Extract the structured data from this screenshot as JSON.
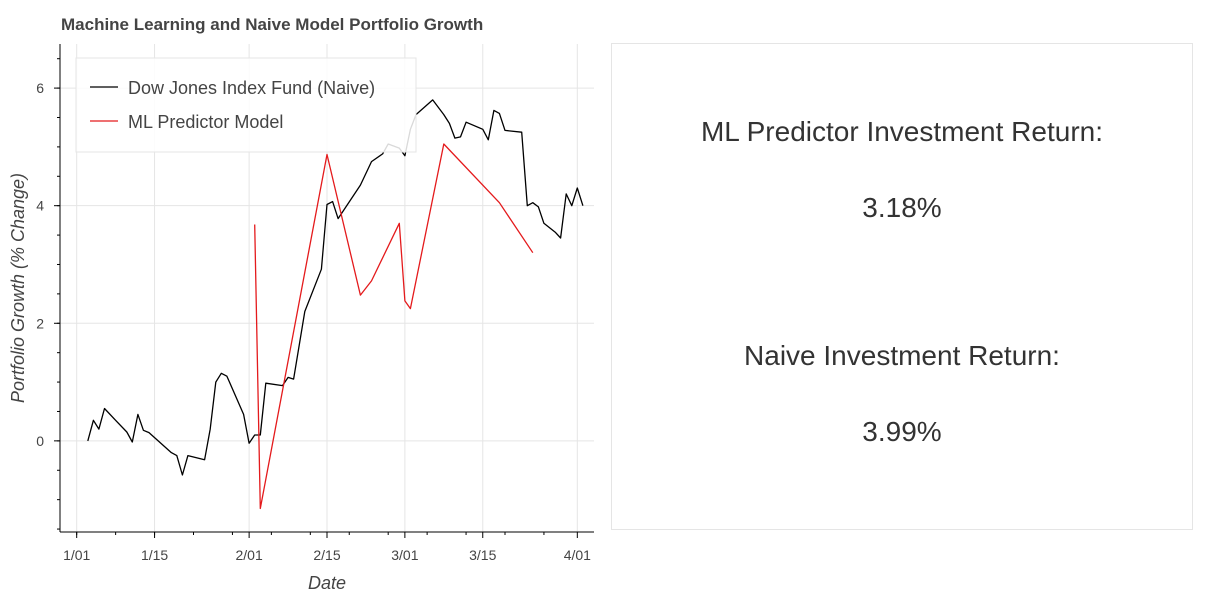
{
  "chart_data": {
    "type": "line",
    "title": "Machine Learning and Naive Model Portfolio Growth",
    "xlabel": "Date",
    "ylabel": "Portfolio Growth (% Change)",
    "xlim": [
      "2019-12-29",
      "2019-04-02"
    ],
    "x_domain": [
      "2019-01-01",
      "2019-04-05"
    ],
    "ylim": [
      -1.55,
      6.75
    ],
    "x_ticks": [
      {
        "date": "2019-01-01",
        "label": "1/01"
      },
      {
        "date": "2019-01-15",
        "label": "1/15"
      },
      {
        "date": "2019-02-01",
        "label": "2/01"
      },
      {
        "date": "2019-02-15",
        "label": "2/15"
      },
      {
        "date": "2019-03-01",
        "label": "3/01"
      },
      {
        "date": "2019-03-15",
        "label": "3/15"
      },
      {
        "date": "2019-04-01",
        "label": "4/01"
      }
    ],
    "y_ticks": [
      0,
      2,
      4,
      6
    ],
    "y_tick_labels": [
      "0",
      "2",
      "4",
      "6"
    ],
    "grid": true,
    "legend_position": "top-left",
    "series": [
      {
        "name": "Dow Jones Index Fund (Naive)",
        "color": "#000000",
        "points": [
          [
            "2019-01-03",
            0.0
          ],
          [
            "2019-01-04",
            0.35
          ],
          [
            "2019-01-05",
            0.2
          ],
          [
            "2019-01-06",
            0.55
          ],
          [
            "2019-01-08",
            0.35
          ],
          [
            "2019-01-10",
            0.15
          ],
          [
            "2019-01-11",
            -0.02
          ],
          [
            "2019-01-12",
            0.45
          ],
          [
            "2019-01-13",
            0.18
          ],
          [
            "2019-01-14",
            0.14
          ],
          [
            "2019-01-18",
            -0.2
          ],
          [
            "2019-01-19",
            -0.25
          ],
          [
            "2019-01-20",
            -0.58
          ],
          [
            "2019-01-21",
            -0.25
          ],
          [
            "2019-01-24",
            -0.32
          ],
          [
            "2019-01-25",
            0.2
          ],
          [
            "2019-01-26",
            1.0
          ],
          [
            "2019-01-27",
            1.15
          ],
          [
            "2019-01-28",
            1.1
          ],
          [
            "2019-01-31",
            0.45
          ],
          [
            "2019-02-01",
            -0.04
          ],
          [
            "2019-02-02",
            0.1
          ],
          [
            "2019-02-03",
            0.1
          ],
          [
            "2019-02-04",
            0.98
          ],
          [
            "2019-02-07",
            0.94
          ],
          [
            "2019-02-08",
            1.08
          ],
          [
            "2019-02-09",
            1.05
          ],
          [
            "2019-02-11",
            2.2
          ],
          [
            "2019-02-14",
            2.92
          ],
          [
            "2019-02-15",
            4.02
          ],
          [
            "2019-02-16",
            4.07
          ],
          [
            "2019-02-17",
            3.78
          ],
          [
            "2019-02-21",
            4.35
          ],
          [
            "2019-02-23",
            4.75
          ],
          [
            "2019-02-25",
            4.88
          ],
          [
            "2019-02-26",
            5.05
          ],
          [
            "2019-02-28",
            4.98
          ],
          [
            "2019-03-01",
            4.85
          ],
          [
            "2019-03-02",
            5.3
          ],
          [
            "2019-03-03",
            5.55
          ],
          [
            "2019-03-06",
            5.8
          ],
          [
            "2019-03-08",
            5.55
          ],
          [
            "2019-03-09",
            5.4
          ],
          [
            "2019-03-10",
            5.15
          ],
          [
            "2019-03-11",
            5.17
          ],
          [
            "2019-03-12",
            5.42
          ],
          [
            "2019-03-15",
            5.3
          ],
          [
            "2019-03-16",
            5.12
          ],
          [
            "2019-03-17",
            5.62
          ],
          [
            "2019-03-18",
            5.57
          ],
          [
            "2019-03-19",
            5.28
          ],
          [
            "2019-03-22",
            5.25
          ],
          [
            "2019-03-23",
            4.0
          ],
          [
            "2019-03-24",
            4.05
          ],
          [
            "2019-03-25",
            3.98
          ],
          [
            "2019-03-26",
            3.7
          ],
          [
            "2019-03-28",
            3.55
          ],
          [
            "2019-03-29",
            3.45
          ],
          [
            "2019-03-30",
            4.2
          ],
          [
            "2019-03-31",
            4.0
          ],
          [
            "2019-04-01",
            4.3
          ],
          [
            "2019-04-02",
            4.0
          ]
        ]
      },
      {
        "name": "ML Predictor Model",
        "color": "#e41a1c",
        "points": [
          [
            "2019-02-02",
            3.68
          ],
          [
            "2019-02-03",
            -1.15
          ],
          [
            "2019-02-15",
            4.87
          ],
          [
            "2019-02-21",
            2.48
          ],
          [
            "2019-02-23",
            2.72
          ],
          [
            "2019-02-28",
            3.7
          ],
          [
            "2019-03-01",
            2.38
          ],
          [
            "2019-03-02",
            2.25
          ],
          [
            "2019-03-08",
            5.05
          ],
          [
            "2019-03-18",
            4.05
          ],
          [
            "2019-03-24",
            3.2
          ]
        ]
      }
    ]
  },
  "summary": {
    "ml_label": "ML Predictor Investment Return:",
    "ml_value": "3.18%",
    "naive_label": "Naive Investment Return:",
    "naive_value": "3.99%"
  }
}
